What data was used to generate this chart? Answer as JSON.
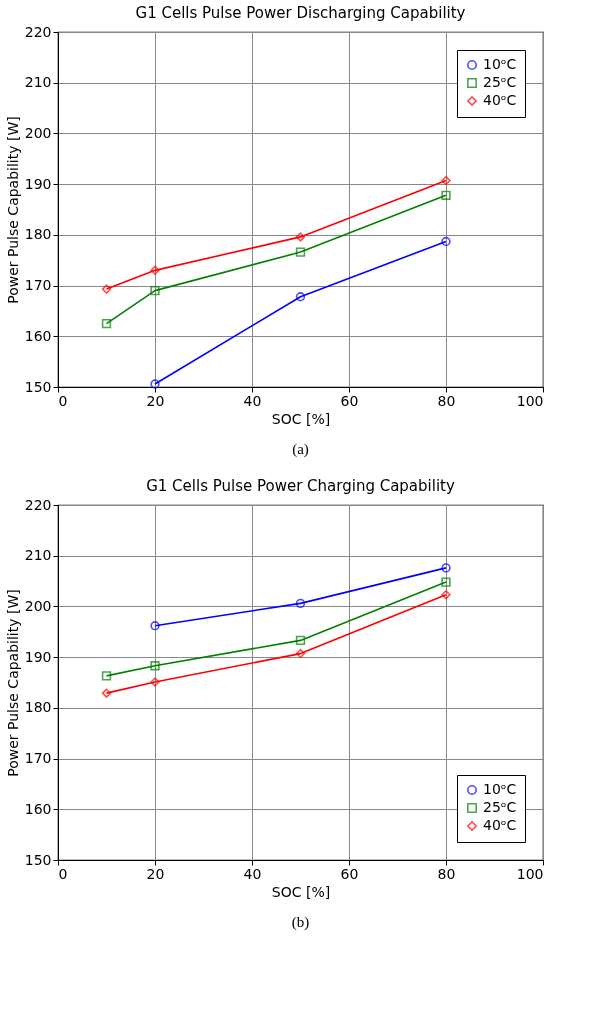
{
  "chart_data": [
    {
      "type": "line",
      "title": "G1 Cells Pulse Power Discharging Capability",
      "xlabel": "SOC [%]",
      "ylabel": "Power Pulse Capability [W]",
      "annotations": [
        "(a)"
      ],
      "xlim": [
        0,
        100
      ],
      "xticks": [
        0,
        20,
        40,
        60,
        80,
        100
      ],
      "ylim": [
        150,
        220
      ],
      "yticks": [
        150,
        160,
        170,
        180,
        190,
        200,
        210,
        220
      ],
      "grid": true,
      "legend": "top right",
      "line_style": "solid",
      "series": [
        {
          "name": "10ᵒC",
          "color": "#0000ff",
          "marker": "circle",
          "x": [
            20,
            50,
            80
          ],
          "values": [
            150.6,
            167.8,
            178.7
          ]
        },
        {
          "name": "25ᵒC",
          "color": "#008000",
          "marker": "square",
          "x": [
            10,
            20,
            50,
            80
          ],
          "values": [
            162.5,
            169.0,
            176.6,
            187.8
          ]
        },
        {
          "name": "40ᵒC",
          "color": "#ff0000",
          "marker": "diamond",
          "x": [
            10,
            20,
            50,
            80
          ],
          "values": [
            169.3,
            173.0,
            179.6,
            190.7
          ]
        }
      ]
    },
    {
      "type": "line",
      "title": "G1 Cells Pulse Power Charging Capability",
      "xlabel": "SOC [%]",
      "ylabel": "Power Pulse Capability [W]",
      "annotations": [
        "(b)"
      ],
      "xlim": [
        0,
        100
      ],
      "xticks": [
        0,
        20,
        40,
        60,
        80,
        100
      ],
      "ylim": [
        150,
        220
      ],
      "yticks": [
        150,
        160,
        170,
        180,
        190,
        200,
        210,
        220
      ],
      "grid": true,
      "legend": "bottom right",
      "line_style": "solid",
      "series": [
        {
          "name": "10ᵒC",
          "color": "#0000ff",
          "marker": "circle",
          "x": [
            20,
            50,
            80
          ],
          "values": [
            196.2,
            200.6,
            207.6
          ]
        },
        {
          "name": "25ᵒC",
          "color": "#008000",
          "marker": "square",
          "x": [
            10,
            20,
            50,
            80
          ],
          "values": [
            186.3,
            188.3,
            193.3,
            204.8
          ]
        },
        {
          "name": "40ᵒC",
          "color": "#ff0000",
          "marker": "diamond",
          "x": [
            10,
            20,
            50,
            80
          ],
          "values": [
            182.9,
            185.1,
            190.7,
            202.3
          ]
        }
      ]
    }
  ]
}
